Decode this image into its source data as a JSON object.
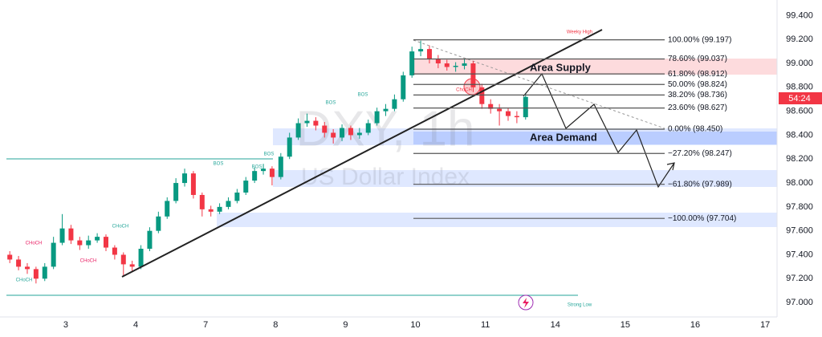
{
  "chart_data": {
    "type": "candlestick",
    "watermark": "DXY, 1h",
    "watermark_subtitle": "US Dollar Index",
    "up_color": "#089981",
    "down_color": "#f23645",
    "xlim": [
      0.06,
      11.17
    ],
    "ylim": [
      96.88,
      99.53
    ],
    "xticks": [
      {
        "value": 1,
        "label": "3"
      },
      {
        "value": 2,
        "label": "4"
      },
      {
        "value": 3,
        "label": "7"
      },
      {
        "value": 4,
        "label": "8"
      },
      {
        "value": 5,
        "label": "9"
      },
      {
        "value": 6,
        "label": "10"
      },
      {
        "value": 7,
        "label": "11"
      },
      {
        "value": 8,
        "label": "14"
      },
      {
        "value": 9,
        "label": "15"
      },
      {
        "value": 10,
        "label": "16"
      },
      {
        "value": 11,
        "label": "17"
      }
    ],
    "yticks": [
      {
        "value": 97.0,
        "label": "97.000"
      },
      {
        "value": 97.2,
        "label": "97.200"
      },
      {
        "value": 97.4,
        "label": "97.400"
      },
      {
        "value": 97.6,
        "label": "97.600"
      },
      {
        "value": 97.8,
        "label": "97.800"
      },
      {
        "value": 98.0,
        "label": "98.000"
      },
      {
        "value": 98.2,
        "label": "98.200"
      },
      {
        "value": 98.4,
        "label": "98.400"
      },
      {
        "value": 98.6,
        "label": "98.600"
      },
      {
        "value": 98.8,
        "label": "98.800"
      },
      {
        "value": 99.0,
        "label": "99.000"
      },
      {
        "value": 99.2,
        "label": "99.200"
      },
      {
        "value": 99.4,
        "label": "99.400"
      }
    ],
    "x": [
      0.2,
      0.325,
      0.45,
      0.575,
      0.7,
      0.825,
      0.95,
      1.075,
      1.2,
      1.325,
      1.45,
      1.575,
      1.7,
      1.825,
      1.95,
      2.075,
      2.2,
      2.325,
      2.45,
      2.575,
      2.7,
      2.825,
      2.95,
      3.075,
      3.2,
      3.325,
      3.45,
      3.575,
      3.7,
      3.825,
      3.95,
      4.075,
      4.2,
      4.325,
      4.45,
      4.575,
      4.7,
      4.825,
      4.95,
      5.075,
      5.2,
      5.325,
      5.45,
      5.575,
      5.7,
      5.825,
      5.95,
      6.075,
      6.2,
      6.325,
      6.45,
      6.575,
      6.7,
      6.825,
      6.95,
      7.075,
      7.2,
      7.325,
      7.45,
      7.575
    ],
    "open": [
      97.4,
      97.36,
      97.3,
      97.28,
      97.2,
      97.3,
      97.5,
      97.62,
      97.52,
      97.48,
      97.52,
      97.55,
      97.46,
      97.4,
      97.32,
      97.3,
      97.45,
      97.6,
      97.72,
      97.85,
      98.0,
      98.08,
      97.9,
      97.78,
      97.76,
      97.8,
      97.85,
      97.92,
      98.02,
      98.1,
      98.12,
      98.05,
      98.22,
      98.38,
      98.5,
      98.52,
      98.48,
      98.42,
      98.38,
      98.46,
      98.4,
      98.42,
      98.5,
      98.6,
      98.62,
      98.7,
      98.9,
      99.1,
      99.12,
      99.04,
      99.0,
      98.97,
      98.98,
      99.0,
      98.8,
      98.66,
      98.62,
      98.6,
      98.56,
      98.55
    ],
    "high": [
      97.43,
      97.39,
      97.33,
      97.3,
      97.33,
      97.55,
      97.74,
      97.65,
      97.55,
      97.56,
      97.58,
      97.57,
      97.48,
      97.42,
      97.35,
      97.48,
      97.63,
      97.76,
      97.88,
      98.04,
      98.12,
      98.1,
      97.92,
      97.81,
      97.83,
      97.88,
      97.95,
      98.05,
      98.13,
      98.16,
      98.14,
      98.25,
      98.42,
      98.54,
      98.58,
      98.55,
      98.51,
      98.45,
      98.49,
      98.48,
      98.46,
      98.53,
      98.63,
      98.66,
      98.74,
      98.93,
      99.14,
      99.19,
      99.15,
      99.07,
      99.03,
      99.01,
      99.04,
      99.02,
      98.83,
      98.7,
      98.66,
      98.63,
      98.6,
      98.75
    ],
    "low": [
      97.33,
      97.27,
      97.24,
      97.16,
      97.18,
      97.28,
      97.48,
      97.49,
      97.44,
      97.45,
      97.5,
      97.43,
      97.36,
      97.22,
      97.26,
      97.28,
      97.43,
      97.58,
      97.7,
      97.83,
      97.97,
      97.87,
      97.72,
      97.72,
      97.74,
      97.78,
      97.83,
      97.9,
      98.0,
      98.07,
      97.98,
      98.03,
      98.2,
      98.36,
      98.47,
      98.44,
      98.38,
      98.33,
      98.35,
      98.36,
      98.37,
      98.4,
      98.48,
      98.56,
      98.6,
      98.68,
      98.88,
      99.06,
      99.0,
      98.96,
      98.94,
      98.93,
      98.95,
      98.76,
      98.62,
      98.58,
      98.48,
      98.52,
      98.5,
      98.53
    ],
    "close": [
      97.36,
      97.3,
      97.28,
      97.2,
      97.3,
      97.5,
      97.62,
      97.52,
      97.48,
      97.52,
      97.55,
      97.46,
      97.4,
      97.32,
      97.3,
      97.45,
      97.6,
      97.72,
      97.85,
      98.0,
      98.08,
      97.9,
      97.78,
      97.76,
      97.8,
      97.85,
      97.92,
      98.02,
      98.1,
      98.12,
      98.05,
      98.22,
      98.38,
      98.5,
      98.52,
      98.48,
      98.42,
      98.38,
      98.46,
      98.4,
      98.42,
      98.5,
      98.6,
      98.62,
      98.7,
      98.9,
      99.1,
      99.12,
      99.04,
      99.0,
      98.97,
      98.98,
      99.0,
      98.8,
      98.66,
      98.62,
      98.6,
      98.56,
      98.55,
      98.72
    ],
    "fib_levels": [
      {
        "value": 99.197,
        "label": "100.00% (99.197)"
      },
      {
        "value": 99.037,
        "label": "78.60% (99.037)"
      },
      {
        "value": 98.912,
        "label": "61.80% (98.912)"
      },
      {
        "value": 98.824,
        "label": "50.00% (98.824)"
      },
      {
        "value": 98.736,
        "label": "38.20% (98.736)"
      },
      {
        "value": 98.627,
        "label": "23.60% (98.627)"
      },
      {
        "value": 98.45,
        "label": "0.00% (98.450)"
      },
      {
        "value": 98.247,
        "label": "−27.20% (98.247)"
      },
      {
        "value": 97.989,
        "label": "−61.80% (97.989)"
      },
      {
        "value": 97.704,
        "label": "−100.00% (97.704)"
      }
    ],
    "zone_labels": [
      "Area Supply",
      "Area Demand"
    ],
    "annotations": [
      "CHoCH",
      "CHoCH",
      "CHoCH",
      "CHoCH",
      "BOS",
      "BOS",
      "BOS",
      "BOS",
      "BOS",
      "ChoCH",
      "Weeky High",
      "Strong Low"
    ],
    "countdown": "54:24"
  }
}
